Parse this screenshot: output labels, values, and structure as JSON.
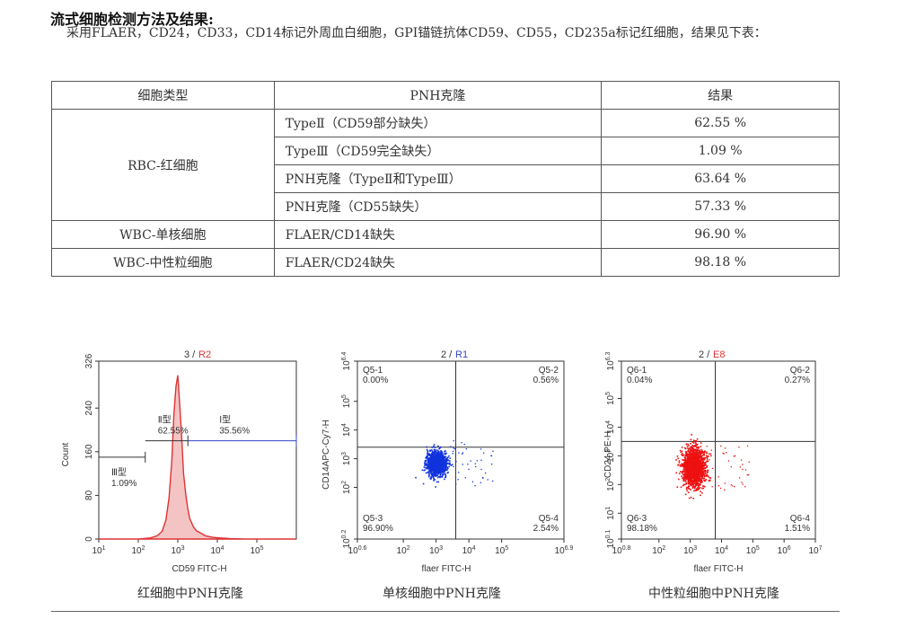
{
  "heading": "流式细胞检测方法及结果:",
  "intro": "采用FLAER，CD24，CD33，CD14标记外周血白细胞，GPI锚链抗体CD59、CD55，CD235a标记红细胞，结果见下表：",
  "table": {
    "headers": [
      "细胞类型",
      "PNH克隆",
      "结果"
    ],
    "groups": [
      {
        "type": "RBC-红细胞",
        "rows": [
          {
            "clone": "TypeⅡ（CD59部分缺失）",
            "result": "62.55 %"
          },
          {
            "clone": "TypeⅢ（CD59完全缺失）",
            "result": "1.09 %"
          },
          {
            "clone": "PNH克隆（TypeⅡ和TypeⅢ）",
            "result": "63.64 %"
          },
          {
            "clone": "PNH克隆（CD55缺失）",
            "result": "57.33 %"
          }
        ]
      },
      {
        "type": "WBC-单核细胞",
        "rows": [
          {
            "clone": "FLAER/CD14缺失",
            "result": "96.90 %"
          }
        ]
      },
      {
        "type": "WBC-中性粒细胞",
        "rows": [
          {
            "clone": "FLAER/CD24缺失",
            "result": "98.18 %"
          }
        ]
      }
    ]
  },
  "colors": {
    "rbc": "#dd3333",
    "monocyte": "#1133dd",
    "neutrophil": "#ee1111",
    "gate_blue": "#3344cc",
    "axis": "#333333"
  },
  "chart_data": [
    {
      "type": "area",
      "title_number": "3 /",
      "title_gate": "R2",
      "xlabel": "CD59 FITC-H",
      "ylabel": "Count",
      "x_log": true,
      "xlim": [
        10,
        1000000
      ],
      "ylim": [
        0,
        326
      ],
      "x_ticks": [
        {
          "value": 10,
          "base": "10",
          "exp": "1"
        },
        {
          "value": 100,
          "base": "10",
          "exp": "2"
        },
        {
          "value": 1000,
          "base": "10",
          "exp": "3"
        },
        {
          "value": 10000,
          "base": "10",
          "exp": "4"
        },
        {
          "value": 100000,
          "base": "10",
          "exp": "5"
        }
      ],
      "y_ticks": [
        0,
        80,
        160,
        240,
        326
      ],
      "series": [
        {
          "x": [
            10,
            50,
            100,
            200,
            300,
            400,
            500,
            600,
            700,
            800,
            900,
            1000,
            1100,
            1200,
            1300,
            1400,
            1600,
            1800,
            2000,
            2500,
            3000,
            4000,
            5000,
            8000,
            12000,
            20000,
            50000,
            1000000
          ],
          "y": [
            0,
            0,
            0,
            2,
            6,
            14,
            35,
            75,
            140,
            230,
            280,
            300,
            255,
            210,
            165,
            120,
            80,
            55,
            38,
            22,
            15,
            10,
            6,
            3,
            2,
            1,
            0,
            0
          ]
        }
      ],
      "gates": [
        {
          "label": "Ⅲ型",
          "value": "1.09%",
          "from": 10,
          "to": 150,
          "level": 150
        },
        {
          "label": "Ⅱ型",
          "value": "62.55%",
          "from": 150,
          "to": 1800,
          "level": 180
        },
        {
          "label": "Ⅰ型",
          "value": "35.56%",
          "from": 1800,
          "to": 1000000,
          "level": 180
        }
      ],
      "caption": "红细胞中PNH克隆"
    },
    {
      "type": "scatter",
      "title_number": "2 /",
      "title_gate": "R1",
      "xlabel": "flaer FITC-H",
      "ylabel": "CD14APC-Cy7-H",
      "x_log": true,
      "y_log": true,
      "x_ticks": [
        {
          "base": "10",
          "exp": "0.6"
        },
        {
          "base": "10",
          "exp": "2"
        },
        {
          "base": "10",
          "exp": "3"
        },
        {
          "base": "10",
          "exp": "4"
        },
        {
          "base": "10",
          "exp": "5"
        },
        {
          "base": "10",
          "exp": "6.9"
        }
      ],
      "y_ticks": [
        {
          "base": "10",
          "exp": "0.2"
        },
        {
          "base": "10",
          "exp": "2"
        },
        {
          "base": "10",
          "exp": "3"
        },
        {
          "base": "10",
          "exp": "4"
        },
        {
          "base": "10",
          "exp": "5"
        },
        {
          "base": "10",
          "exp": "6.4"
        }
      ],
      "xlim_exp": [
        0.6,
        6.9
      ],
      "ylim_exp": [
        0.2,
        6.4
      ],
      "quadrant_exp": {
        "x": 3.6,
        "y": 3.4
      },
      "quadrants": [
        {
          "name": "Q5-1",
          "value": "0.00%"
        },
        {
          "name": "Q5-2",
          "value": "0.56%"
        },
        {
          "name": "Q5-3",
          "value": "96.90%"
        },
        {
          "name": "Q5-4",
          "value": "2.54%"
        }
      ],
      "population": {
        "center_exp": [
          3.0,
          2.85
        ],
        "spread_exp": [
          0.15,
          0.2
        ],
        "count": 1400
      },
      "caption": "单核细胞中PNH克隆"
    },
    {
      "type": "scatter",
      "title_number": "2 /",
      "title_gate": "E8",
      "xlabel": "flaer FITC-H",
      "ylabel": "CD24 PE-H",
      "x_log": true,
      "y_log": true,
      "x_ticks": [
        {
          "base": "10",
          "exp": "0.8"
        },
        {
          "base": "10",
          "exp": "2"
        },
        {
          "base": "10",
          "exp": "3"
        },
        {
          "base": "10",
          "exp": "4"
        },
        {
          "base": "10",
          "exp": "5"
        },
        {
          "base": "10",
          "exp": "6"
        },
        {
          "base": "10",
          "exp": "7"
        }
      ],
      "y_ticks": [
        {
          "base": "10",
          "exp": "0.1"
        },
        {
          "base": "10",
          "exp": "1"
        },
        {
          "base": "10",
          "exp": "2"
        },
        {
          "base": "10",
          "exp": "3"
        },
        {
          "base": "10",
          "exp": "4"
        },
        {
          "base": "10",
          "exp": "5"
        },
        {
          "base": "10",
          "exp": "6.3"
        }
      ],
      "xlim_exp": [
        0.8,
        7.0
      ],
      "ylim_exp": [
        0.1,
        6.3
      ],
      "quadrant_exp": {
        "x": 3.8,
        "y": 3.5
      },
      "quadrants": [
        {
          "name": "Q6-1",
          "value": "0.04%"
        },
        {
          "name": "Q6-2",
          "value": "0.27%"
        },
        {
          "name": "Q6-3",
          "value": "98.18%"
        },
        {
          "name": "Q6-4",
          "value": "1.51%"
        }
      ],
      "population": {
        "center_exp": [
          3.1,
          2.6
        ],
        "spread_exp": [
          0.18,
          0.35
        ],
        "count": 1500
      },
      "caption": "中性粒细胞中PNH克隆"
    }
  ]
}
